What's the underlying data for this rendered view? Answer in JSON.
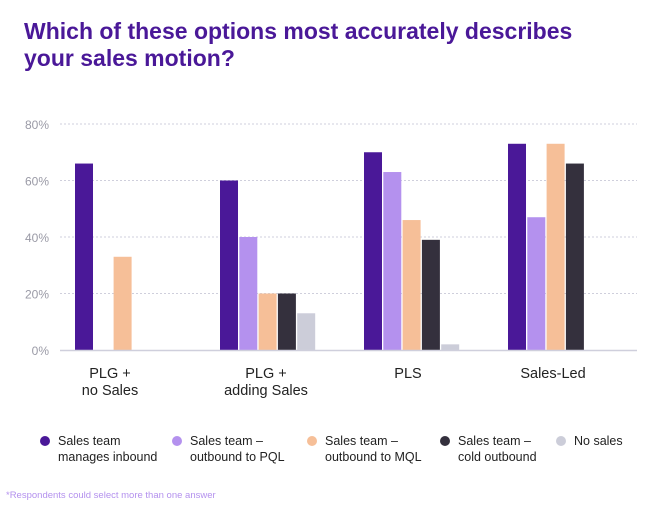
{
  "title": "Which of these options most accurately describes your sales motion?",
  "footnote": "*Respondents could select more than one answer",
  "chart_data": {
    "type": "bar",
    "title": "Which of these options most accurately describes your sales motion?",
    "categories": [
      "PLG +\nno Sales",
      "PLG +\nadding Sales",
      "PLS",
      "Sales-Led"
    ],
    "ylim": [
      0,
      80
    ],
    "yticks": [
      "0%",
      "20%",
      "40%",
      "60%",
      "80%"
    ],
    "ytick_values": [
      0,
      20,
      40,
      60,
      80
    ],
    "grid": true,
    "legend_position": "bottom",
    "series": [
      {
        "name": "Sales team\nmanages inbound",
        "color": "#4a1898",
        "values": [
          66,
          60,
          70,
          73
        ]
      },
      {
        "name": "Sales team –\n  outbound to PQL",
        "color": "#b491ee",
        "values": [
          0,
          40,
          63,
          47
        ]
      },
      {
        "name": "Sales team –\n  outbound to MQL",
        "color": "#f6bf98",
        "values": [
          33,
          20,
          46,
          73
        ]
      },
      {
        "name": "Sales team –\ncold outbound",
        "color": "#34303d",
        "values": [
          0,
          20,
          39,
          66
        ]
      },
      {
        "name": "No sales",
        "color": "#cccdd9",
        "values": [
          0,
          13,
          2,
          0
        ]
      }
    ]
  }
}
